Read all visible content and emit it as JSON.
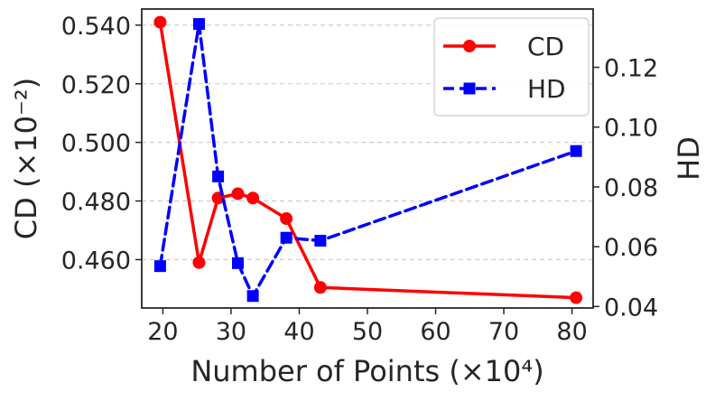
{
  "chart_data": {
    "type": "line",
    "xlabel": "Number of Points (×10⁴)",
    "ylabel_left": "CD (×10⁻²)",
    "ylabel_right": "HD",
    "xlim": [
      16.9,
      83.1
    ],
    "ylim_left": [
      0.4435,
      0.5455
    ],
    "ylim_right": [
      0.0395,
      0.1395
    ],
    "xticks": [
      20,
      30,
      40,
      50,
      60,
      70,
      80
    ],
    "xtick_labels": [
      "20",
      "30",
      "40",
      "50",
      "60",
      "70",
      "80"
    ],
    "yticks_left": [
      0.46,
      0.48,
      0.5,
      0.52,
      0.54
    ],
    "ytick_labels_left": [
      "0.460",
      "0.480",
      "0.500",
      "0.520",
      "0.540"
    ],
    "yticks_right": [
      0.04,
      0.06,
      0.08,
      0.1,
      0.12
    ],
    "ytick_labels_right": [
      "0.04",
      "0.06",
      "0.08",
      "0.10",
      "0.12"
    ],
    "grid": "horizontal dashed",
    "legend_position": "top-right",
    "series": [
      {
        "name": "CD",
        "axis": "left",
        "color": "#ff0000",
        "line_style": "solid",
        "marker": "circle",
        "x": [
          19.6,
          25.3,
          28.1,
          31.0,
          33.2,
          38.1,
          43.1,
          80.6
        ],
        "values": [
          0.541,
          0.459,
          0.481,
          0.4825,
          0.481,
          0.474,
          0.4505,
          0.447
        ]
      },
      {
        "name": "HD",
        "axis": "right",
        "color": "#0000ff",
        "line_style": "dashed",
        "marker": "square",
        "x": [
          19.6,
          25.3,
          28.1,
          31.0,
          33.2,
          38.1,
          43.1,
          80.6
        ],
        "values": [
          0.0535,
          0.1345,
          0.0835,
          0.0545,
          0.0435,
          0.063,
          0.062,
          0.092
        ]
      }
    ]
  }
}
